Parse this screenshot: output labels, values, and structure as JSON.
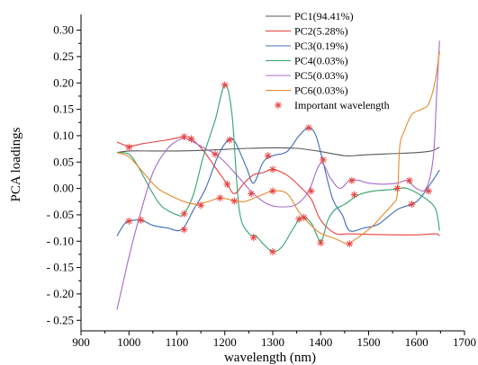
{
  "chart_data": {
    "type": "line",
    "xlabel": "wavelength (nm)",
    "ylabel": "PCA loadings",
    "xlim": [
      900,
      1700
    ],
    "ylim": [
      -0.27,
      0.33
    ],
    "x_ticks": [
      900,
      1000,
      1100,
      1200,
      1300,
      1400,
      1500,
      1600,
      1700
    ],
    "y_ticks": [
      -0.25,
      -0.2,
      -0.15,
      -0.1,
      -0.05,
      0.0,
      0.05,
      0.1,
      0.15,
      0.2,
      0.25,
      0.3
    ],
    "x_tick_labels": [
      "900",
      "1000",
      "1100",
      "1200",
      "1300",
      "1400",
      "1500",
      "1600",
      "1700"
    ],
    "y_tick_labels": [
      "- 0.25",
      "- 0.20",
      "- 0.15",
      "- 0.10",
      "- 0.05",
      "0.00",
      "0.05",
      "0.10",
      "0.15",
      "0.20",
      "0.25",
      "0.30"
    ],
    "legend_position": "top-right",
    "series": [
      {
        "name": "PC1(94.41%)",
        "color": "#595959",
        "points": [
          [
            975,
            0.068
          ],
          [
            1000,
            0.071
          ],
          [
            1050,
            0.071
          ],
          [
            1100,
            0.071
          ],
          [
            1150,
            0.072
          ],
          [
            1200,
            0.074
          ],
          [
            1250,
            0.076
          ],
          [
            1300,
            0.077
          ],
          [
            1350,
            0.076
          ],
          [
            1400,
            0.07
          ],
          [
            1450,
            0.062
          ],
          [
            1480,
            0.063
          ],
          [
            1500,
            0.064
          ],
          [
            1550,
            0.066
          ],
          [
            1600,
            0.068
          ],
          [
            1630,
            0.071
          ],
          [
            1648,
            0.078
          ]
        ]
      },
      {
        "name": "PC2(5.28%)",
        "color": "#e8413e",
        "points": [
          [
            975,
            0.088
          ],
          [
            1000,
            0.08
          ],
          [
            1030,
            0.085
          ],
          [
            1080,
            0.092
          ],
          [
            1115,
            0.098
          ],
          [
            1130,
            0.094
          ],
          [
            1155,
            0.072
          ],
          [
            1180,
            0.04
          ],
          [
            1205,
            0.008
          ],
          [
            1220,
            -0.01
          ],
          [
            1240,
            0.01
          ],
          [
            1260,
            0.026
          ],
          [
            1280,
            0.03
          ],
          [
            1300,
            0.036
          ],
          [
            1330,
            0.025
          ],
          [
            1355,
            0.005
          ],
          [
            1380,
            -0.02
          ],
          [
            1400,
            -0.06
          ],
          [
            1430,
            -0.085
          ],
          [
            1460,
            -0.086
          ],
          [
            1500,
            -0.087
          ],
          [
            1550,
            -0.088
          ],
          [
            1600,
            -0.088
          ],
          [
            1640,
            -0.086
          ],
          [
            1648,
            -0.09
          ]
        ]
      },
      {
        "name": "PC3(0.19%)",
        "color": "#3d6db5",
        "points": [
          [
            975,
            -0.09
          ],
          [
            990,
            -0.068
          ],
          [
            1000,
            -0.062
          ],
          [
            1025,
            -0.06
          ],
          [
            1050,
            -0.07
          ],
          [
            1080,
            -0.075
          ],
          [
            1110,
            -0.078
          ],
          [
            1135,
            -0.04
          ],
          [
            1160,
            0.0
          ],
          [
            1185,
            0.06
          ],
          [
            1205,
            0.09
          ],
          [
            1220,
            0.09
          ],
          [
            1245,
            0.04
          ],
          [
            1260,
            0.01
          ],
          [
            1280,
            0.05
          ],
          [
            1300,
            0.062
          ],
          [
            1330,
            0.07
          ],
          [
            1355,
            0.1
          ],
          [
            1375,
            0.115
          ],
          [
            1390,
            0.1
          ],
          [
            1405,
            0.05
          ],
          [
            1425,
            -0.02
          ],
          [
            1445,
            -0.05
          ],
          [
            1460,
            -0.08
          ],
          [
            1490,
            -0.075
          ],
          [
            1520,
            -0.068
          ],
          [
            1560,
            -0.04
          ],
          [
            1600,
            -0.025
          ],
          [
            1630,
            0.01
          ],
          [
            1648,
            0.035
          ]
        ]
      },
      {
        "name": "PC4(0.03%)",
        "color": "#33a36b",
        "points": [
          [
            975,
            0.068
          ],
          [
            1000,
            0.065
          ],
          [
            1020,
            0.04
          ],
          [
            1050,
            -0.01
          ],
          [
            1070,
            -0.035
          ],
          [
            1100,
            -0.05
          ],
          [
            1115,
            -0.048
          ],
          [
            1135,
            -0.01
          ],
          [
            1155,
            0.06
          ],
          [
            1180,
            0.13
          ],
          [
            1200,
            0.196
          ],
          [
            1215,
            0.14
          ],
          [
            1230,
            -0.04
          ],
          [
            1250,
            -0.085
          ],
          [
            1265,
            -0.09
          ],
          [
            1280,
            -0.105
          ],
          [
            1300,
            -0.12
          ],
          [
            1320,
            -0.11
          ],
          [
            1340,
            -0.08
          ],
          [
            1360,
            -0.055
          ],
          [
            1380,
            -0.065
          ],
          [
            1400,
            -0.1
          ],
          [
            1415,
            -0.06
          ],
          [
            1430,
            -0.04
          ],
          [
            1450,
            -0.03
          ],
          [
            1480,
            -0.012
          ],
          [
            1510,
            -0.005
          ],
          [
            1550,
            -0.002
          ],
          [
            1580,
            0.0
          ],
          [
            1620,
            -0.02
          ],
          [
            1640,
            -0.04
          ],
          [
            1648,
            -0.08
          ]
        ]
      },
      {
        "name": "PC5(0.03%)",
        "color": "#a868c8",
        "points": [
          [
            975,
            -0.23
          ],
          [
            990,
            -0.17
          ],
          [
            1000,
            -0.13
          ],
          [
            1020,
            -0.06
          ],
          [
            1050,
            0.03
          ],
          [
            1080,
            0.075
          ],
          [
            1100,
            0.09
          ],
          [
            1115,
            0.095
          ],
          [
            1130,
            0.09
          ],
          [
            1160,
            0.075
          ],
          [
            1180,
            0.065
          ],
          [
            1200,
            0.05
          ],
          [
            1230,
            0.02
          ],
          [
            1260,
            -0.01
          ],
          [
            1290,
            -0.03
          ],
          [
            1320,
            -0.035
          ],
          [
            1350,
            -0.03
          ],
          [
            1375,
            -0.005
          ],
          [
            1400,
            0.048
          ],
          [
            1420,
            0.02
          ],
          [
            1440,
            0.0
          ],
          [
            1460,
            0.015
          ],
          [
            1480,
            0.015
          ],
          [
            1500,
            0.01
          ],
          [
            1530,
            0.008
          ],
          [
            1560,
            0.01
          ],
          [
            1580,
            0.015
          ],
          [
            1600,
            0.0
          ],
          [
            1620,
            0.0
          ],
          [
            1635,
            0.06
          ],
          [
            1642,
            0.18
          ],
          [
            1648,
            0.28
          ]
        ]
      },
      {
        "name": "PC6(0.03%)",
        "color": "#e58a2e",
        "points": [
          [
            975,
            0.068
          ],
          [
            1000,
            0.06
          ],
          [
            1030,
            0.03
          ],
          [
            1060,
            0.0
          ],
          [
            1090,
            -0.015
          ],
          [
            1115,
            -0.025
          ],
          [
            1140,
            -0.03
          ],
          [
            1165,
            -0.025
          ],
          [
            1190,
            -0.018
          ],
          [
            1215,
            -0.022
          ],
          [
            1240,
            -0.025
          ],
          [
            1270,
            -0.015
          ],
          [
            1300,
            -0.005
          ],
          [
            1330,
            -0.01
          ],
          [
            1355,
            -0.045
          ],
          [
            1380,
            -0.07
          ],
          [
            1400,
            -0.085
          ],
          [
            1430,
            -0.095
          ],
          [
            1455,
            -0.105
          ],
          [
            1470,
            -0.098
          ],
          [
            1490,
            -0.085
          ],
          [
            1510,
            -0.07
          ],
          [
            1530,
            -0.05
          ],
          [
            1550,
            -0.03
          ],
          [
            1560,
            -0.01
          ],
          [
            1565,
            0.08
          ],
          [
            1575,
            0.11
          ],
          [
            1590,
            0.14
          ],
          [
            1610,
            0.15
          ],
          [
            1625,
            0.16
          ],
          [
            1638,
            0.2
          ],
          [
            1648,
            0.26
          ]
        ]
      }
    ],
    "important_wavelength": {
      "name": "Important wavelength",
      "color": "#e8413e",
      "points": [
        [
          1000,
          0.078
        ],
        [
          1000,
          -0.062
        ],
        [
          1025,
          -0.06
        ],
        [
          1115,
          0.098
        ],
        [
          1130,
          0.094
        ],
        [
          1115,
          -0.078
        ],
        [
          1115,
          -0.048
        ],
        [
          1150,
          -0.032
        ],
        [
          1180,
          0.065
        ],
        [
          1190,
          -0.018
        ],
        [
          1200,
          0.196
        ],
        [
          1205,
          0.008
        ],
        [
          1210,
          0.092
        ],
        [
          1220,
          -0.024
        ],
        [
          1255,
          -0.01
        ],
        [
          1260,
          -0.093
        ],
        [
          1290,
          0.062
        ],
        [
          1300,
          -0.005
        ],
        [
          1300,
          0.036
        ],
        [
          1300,
          -0.12
        ],
        [
          1355,
          -0.058
        ],
        [
          1365,
          -0.055
        ],
        [
          1375,
          0.115
        ],
        [
          1380,
          -0.005
        ],
        [
          1400,
          -0.103
        ],
        [
          1405,
          0.054
        ],
        [
          1460,
          -0.105
        ],
        [
          1465,
          0.015
        ],
        [
          1470,
          -0.012
        ],
        [
          1560,
          0.0
        ],
        [
          1585,
          0.015
        ],
        [
          1590,
          -0.03
        ],
        [
          1625,
          -0.005
        ]
      ]
    }
  }
}
